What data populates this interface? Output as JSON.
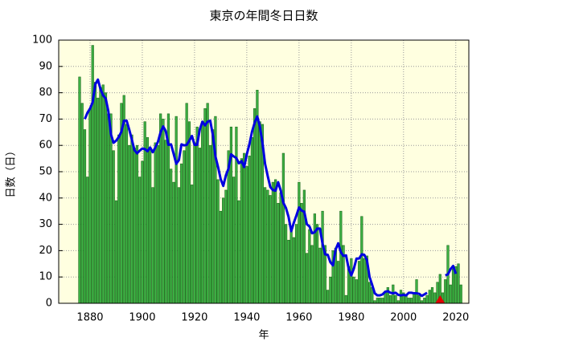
{
  "chart_data": {
    "type": "bar",
    "title": "東京の年間冬日日数",
    "x_label": "年",
    "y_label": "日数（日）",
    "x": [
      1876,
      1877,
      1878,
      1879,
      1880,
      1881,
      1882,
      1883,
      1884,
      1885,
      1886,
      1887,
      1888,
      1889,
      1890,
      1891,
      1892,
      1893,
      1894,
      1895,
      1896,
      1897,
      1898,
      1899,
      1900,
      1901,
      1902,
      1903,
      1904,
      1905,
      1906,
      1907,
      1908,
      1909,
      1910,
      1911,
      1912,
      1913,
      1914,
      1915,
      1916,
      1917,
      1918,
      1919,
      1920,
      1921,
      1922,
      1923,
      1924,
      1925,
      1926,
      1927,
      1928,
      1929,
      1930,
      1931,
      1932,
      1933,
      1934,
      1935,
      1936,
      1937,
      1938,
      1939,
      1940,
      1941,
      1942,
      1943,
      1944,
      1945,
      1946,
      1947,
      1948,
      1949,
      1950,
      1951,
      1952,
      1953,
      1954,
      1955,
      1956,
      1957,
      1958,
      1959,
      1960,
      1961,
      1962,
      1963,
      1964,
      1965,
      1966,
      1967,
      1968,
      1969,
      1970,
      1971,
      1972,
      1973,
      1974,
      1975,
      1976,
      1977,
      1978,
      1979,
      1980,
      1981,
      1982,
      1983,
      1984,
      1985,
      1986,
      1987,
      1988,
      1989,
      1990,
      1991,
      1992,
      1993,
      1994,
      1995,
      1996,
      1997,
      1998,
      1999,
      2000,
      2001,
      2002,
      2003,
      2004,
      2005,
      2006,
      2007,
      2008,
      2009,
      2010,
      2011,
      2012,
      2013,
      2014,
      2015,
      2016,
      2017,
      2018,
      2019,
      2020,
      2021,
      2022
    ],
    "series": [
      {
        "type": "bar",
        "color": "#3cb043",
        "edge_color": "#1e6b1e",
        "values": [
          86,
          76,
          66,
          48,
          74,
          98,
          84,
          78,
          82,
          83,
          80,
          72,
          72,
          58,
          39,
          64,
          76,
          79,
          68,
          60,
          64,
          59,
          60,
          48,
          54,
          69,
          63,
          59,
          44,
          61,
          60,
          72,
          70,
          62,
          72,
          51,
          46,
          71,
          44,
          53,
          58,
          76,
          69,
          45,
          61,
          67,
          59,
          69,
          74,
          76,
          60,
          66,
          71,
          47,
          35,
          40,
          43,
          58,
          67,
          48,
          67,
          39,
          55,
          57,
          52,
          56,
          63,
          74,
          81,
          69,
          68,
          44,
          43,
          41,
          46,
          47,
          38,
          42,
          57,
          30,
          24,
          28,
          25,
          30,
          46,
          38,
          43,
          19,
          28,
          22,
          34,
          30,
          21,
          35,
          22,
          5,
          10,
          20,
          21,
          16,
          35,
          22,
          3,
          14,
          17,
          10,
          9,
          16,
          33,
          17,
          18,
          8,
          6,
          1,
          2,
          2,
          2,
          4,
          6,
          3,
          7,
          3,
          1,
          5,
          4,
          3,
          2,
          2,
          4,
          9,
          3,
          1,
          2,
          3,
          5,
          6,
          4,
          8,
          11,
          4,
          9,
          22,
          7,
          13,
          14,
          15,
          7
        ]
      },
      {
        "type": "line",
        "color": "#0000e0",
        "values": [
          null,
          null,
          70,
          72.4,
          74,
          76.4,
          83.2,
          85,
          81.4,
          79,
          77.8,
          73,
          64.2,
          61,
          61.8,
          63.2,
          65.2,
          69.4,
          69.4,
          66,
          62.2,
          58.2,
          57,
          58,
          58.8,
          58.6,
          57.8,
          59.2,
          57.4,
          59.2,
          61.4,
          65,
          67.2,
          65.4,
          60.2,
          60.4,
          56.8,
          53,
          54.4,
          60.4,
          60,
          60.2,
          61.8,
          63.6,
          60.2,
          60.2,
          66,
          69,
          67.6,
          69,
          69.4,
          64,
          55.8,
          51.8,
          47.2,
          44.6,
          48.6,
          51.2,
          56.6,
          55.8,
          55.2,
          53.2,
          54,
          51.8,
          56.6,
          60.4,
          65.2,
          68.6,
          71,
          67.2,
          61,
          53,
          48.4,
          44.2,
          43,
          42.8,
          46,
          42.8,
          38.2,
          36.2,
          32.8,
          27.4,
          30.6,
          33.4,
          36.4,
          35.2,
          34.8,
          30,
          29.2,
          26.6,
          27,
          28.4,
          28.4,
          22.6,
          18.6,
          18.4,
          15.6,
          14.4,
          20.4,
          22.8,
          19.4,
          18,
          18.2,
          13.2,
          10.6,
          13.2,
          17,
          17,
          18.6,
          18.4,
          16.4,
          10,
          7,
          3.8,
          3,
          3,
          3.4,
          4.4,
          4.6,
          4,
          3.8,
          4,
          3.2,
          3,
          3.2,
          3,
          4,
          4,
          3.8,
          3.8,
          3.6,
          2.8,
          3.4,
          4,
          null,
          null,
          null,
          null,
          null,
          null,
          10.6,
          11,
          13,
          14.2,
          11.2,
          null,
          null
        ]
      }
    ],
    "marker": {
      "x": 2014,
      "y": 0,
      "color": "#e00000"
    },
    "xlim": [
      1868,
      2025
    ],
    "ylim": [
      0,
      100
    ],
    "xticks": [
      1880,
      1900,
      1920,
      1940,
      1960,
      1980,
      2000,
      2020
    ],
    "yticks": [
      0,
      10,
      20,
      30,
      40,
      50,
      60,
      70,
      80,
      90,
      100
    ],
    "grid": true,
    "background": "#ffffe0"
  }
}
